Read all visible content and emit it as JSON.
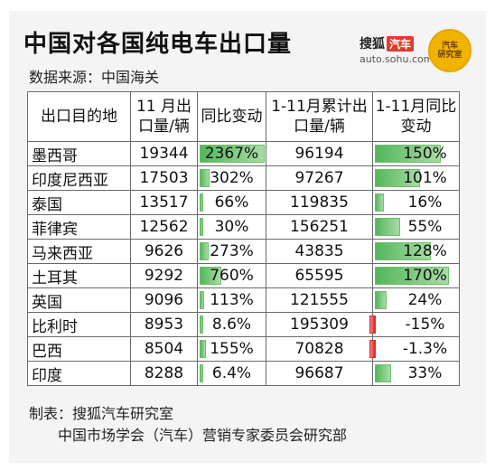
{
  "title": "中国对各国纯电车出口量",
  "source": "数据来源：中国海关",
  "brand": {
    "name": "搜狐",
    "tag": "汽车",
    "url": "auto.sohu.com",
    "seal_line1": "汽车",
    "seal_line2": "研究室"
  },
  "colors": {
    "positive_bar": "#53b75b",
    "negative_bar": "#e02020",
    "card_bg": "#f4f4f4"
  },
  "chart_data": {
    "type": "table",
    "columns": [
      "出口目的地",
      "11 月出口量/辆",
      "同比变动",
      "1-11月累计出口量/辆",
      "1-11月同比变动"
    ],
    "rows": [
      {
        "country": "墨西哥",
        "nov_volume": "19344",
        "nov_yoy": "2367%",
        "nov_yoy_value": 2367,
        "cum_volume": "96194",
        "cum_yoy": "150%",
        "cum_yoy_value": 150
      },
      {
        "country": "印度尼西亚",
        "nov_volume": "17503",
        "nov_yoy": "302%",
        "nov_yoy_value": 302,
        "cum_volume": "97267",
        "cum_yoy": "101%",
        "cum_yoy_value": 101
      },
      {
        "country": "泰国",
        "nov_volume": "13517",
        "nov_yoy": "66%",
        "nov_yoy_value": 66,
        "cum_volume": "119835",
        "cum_yoy": "16%",
        "cum_yoy_value": 16
      },
      {
        "country": "菲律宾",
        "nov_volume": "12562",
        "nov_yoy": "30%",
        "nov_yoy_value": 30,
        "cum_volume": "156251",
        "cum_yoy": "55%",
        "cum_yoy_value": 55
      },
      {
        "country": "马来西亚",
        "nov_volume": "9626",
        "nov_yoy": "273%",
        "nov_yoy_value": 273,
        "cum_volume": "43835",
        "cum_yoy": "128%",
        "cum_yoy_value": 128
      },
      {
        "country": "土耳其",
        "nov_volume": "9292",
        "nov_yoy": "760%",
        "nov_yoy_value": 760,
        "cum_volume": "65595",
        "cum_yoy": "170%",
        "cum_yoy_value": 170
      },
      {
        "country": "英国",
        "nov_volume": "9096",
        "nov_yoy": "113%",
        "nov_yoy_value": 113,
        "cum_volume": "121555",
        "cum_yoy": "24%",
        "cum_yoy_value": 24
      },
      {
        "country": "比利时",
        "nov_volume": "8953",
        "nov_yoy": "8.6%",
        "nov_yoy_value": 8.6,
        "cum_volume": "195309",
        "cum_yoy": "-15%",
        "cum_yoy_value": -15
      },
      {
        "country": "巴西",
        "nov_volume": "8504",
        "nov_yoy": "155%",
        "nov_yoy_value": 155,
        "cum_volume": "70828",
        "cum_yoy": "-1.3%",
        "cum_yoy_value": -1.3
      },
      {
        "country": "印度",
        "nov_volume": "8288",
        "nov_yoy": "6.4%",
        "nov_yoy_value": 6.4,
        "cum_volume": "96687",
        "cum_yoy": "33%",
        "cum_yoy_value": 33
      }
    ]
  },
  "notes": {
    "maker": "制表：搜狐汽车研究室",
    "org": "中国市场学会（汽车）营销专家委员会研究部"
  }
}
